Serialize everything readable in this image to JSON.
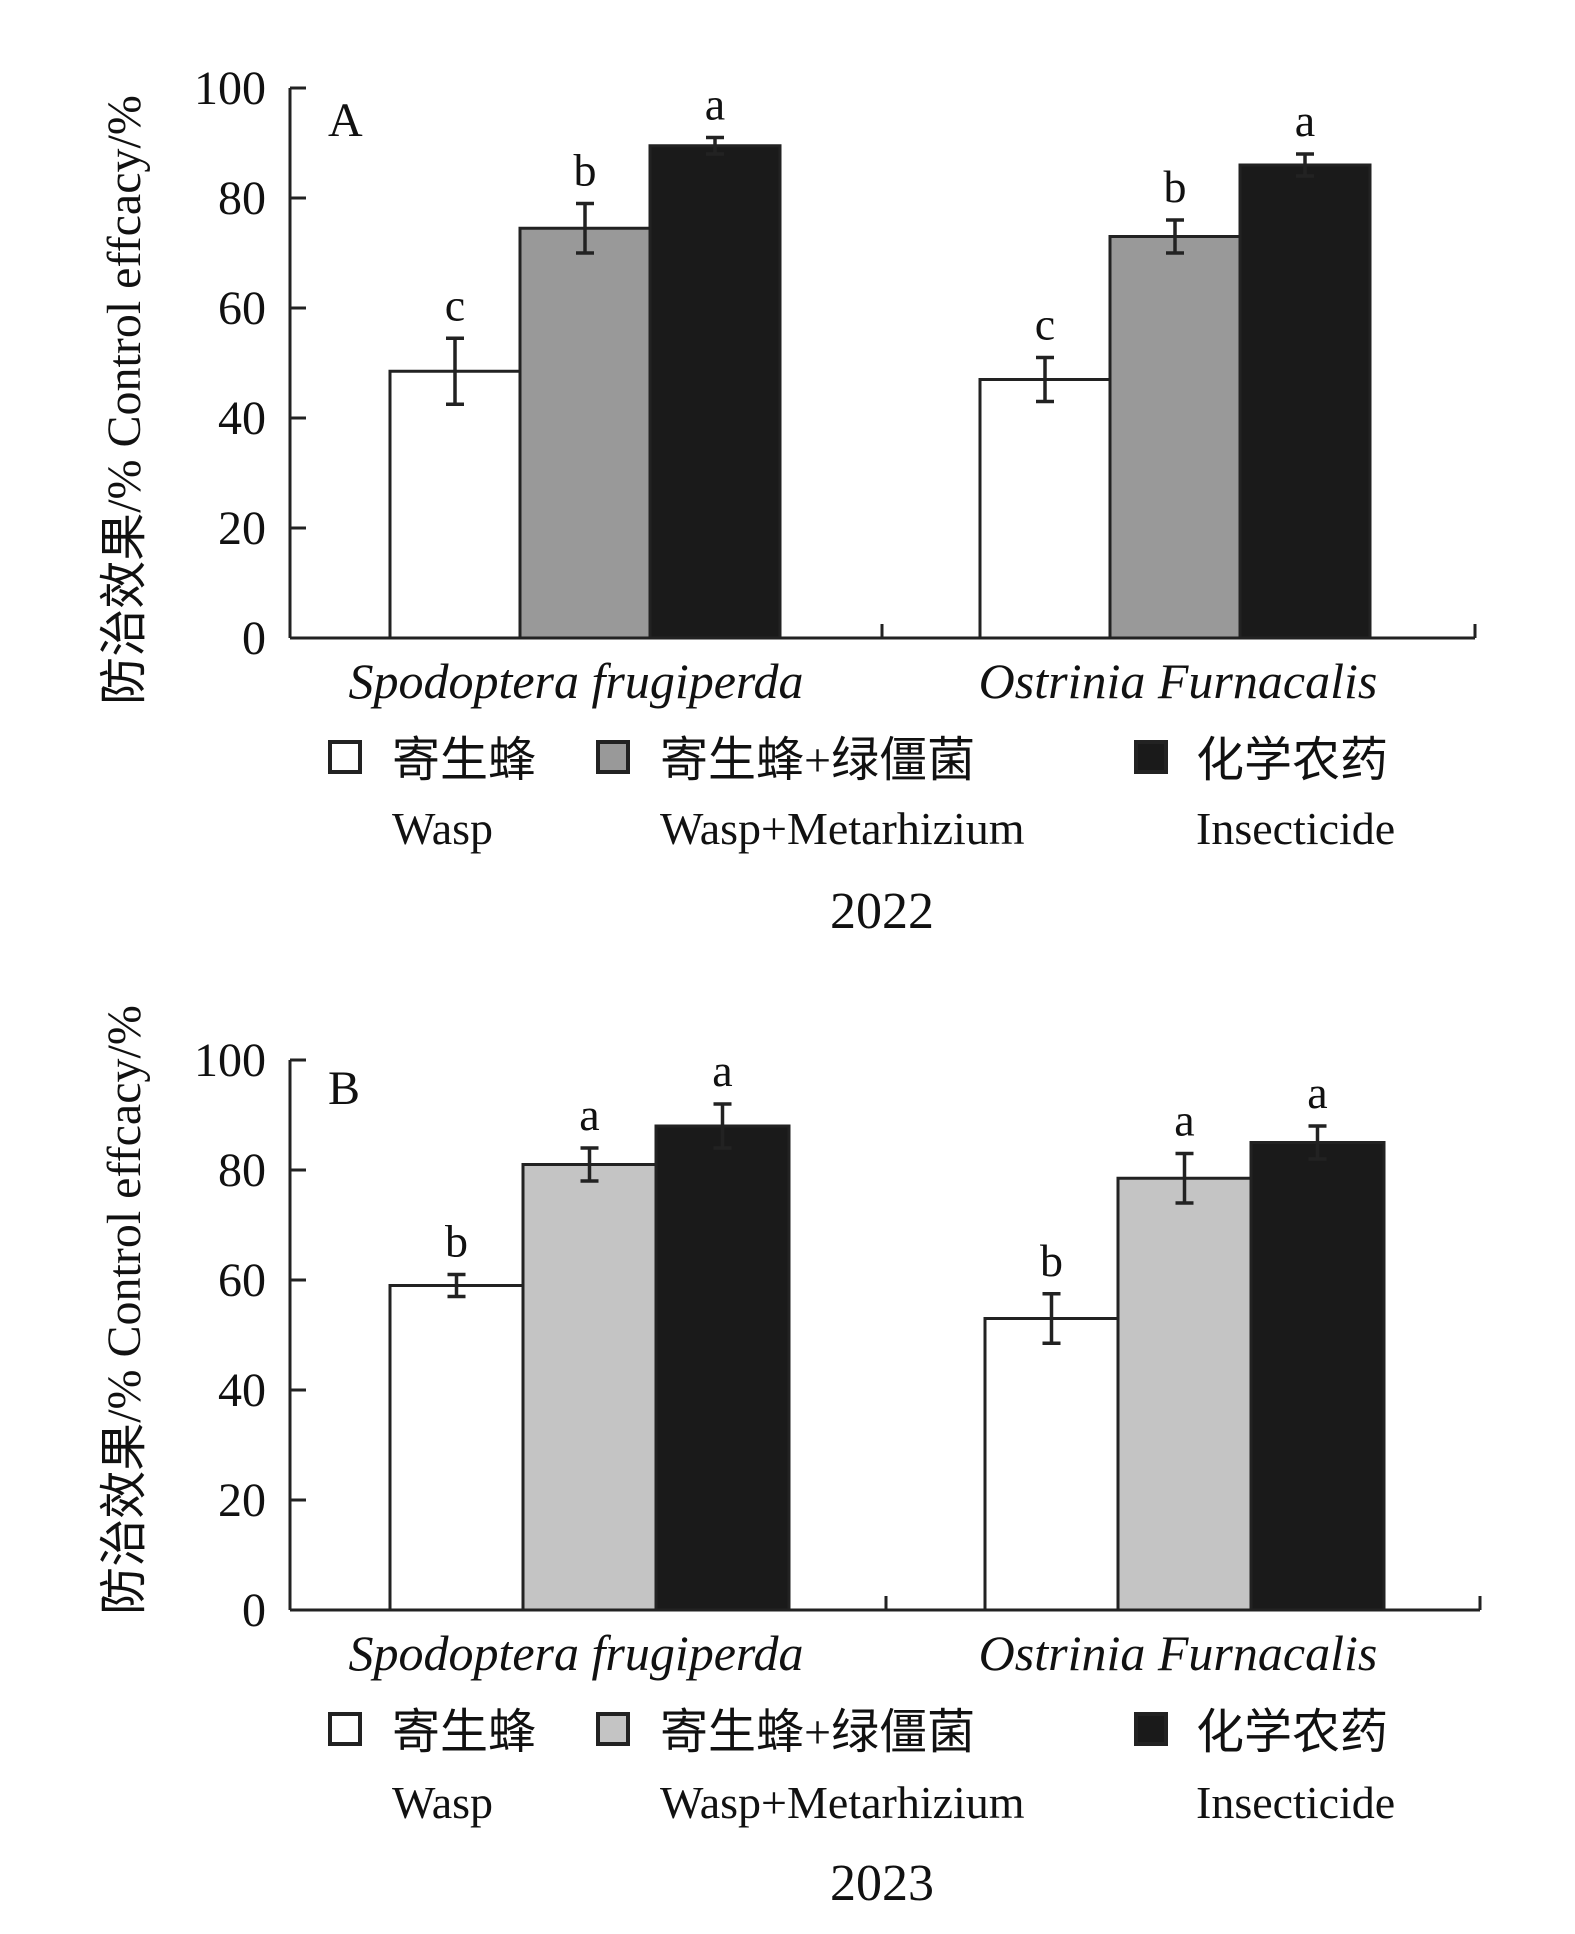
{
  "y_axis_label": "防治效果/% Control effcacy/%",
  "legend": [
    {
      "zh": "寄生蜂",
      "en": "Wasp"
    },
    {
      "zh": "寄生蜂+绿僵菌",
      "en": "Wasp+Metarhizium"
    },
    {
      "zh": "化学农药",
      "en": "Insecticide"
    }
  ],
  "colors": {
    "wasp": "#ffffff",
    "wasp_metarhizium_2022": "#999999",
    "wasp_metarhizium_2023": "#c4c4c4",
    "insecticide": "#1a1a1a",
    "axis": "#222222"
  },
  "chart_data": [
    {
      "type": "bar",
      "panel": "A",
      "year": "2022",
      "categories": [
        "Spodoptera frugiperda",
        "Ostrinia Furnacalis"
      ],
      "ylim": [
        0,
        100
      ],
      "yticks": [
        0,
        20,
        40,
        60,
        80,
        100
      ],
      "series": [
        {
          "values": [
            48.5,
            47.0
          ],
          "errors": [
            6.0,
            4.0
          ],
          "letters": [
            "c",
            "c"
          ]
        },
        {
          "values": [
            74.5,
            73.0
          ],
          "errors": [
            4.5,
            3.0
          ],
          "letters": [
            "b",
            "b"
          ]
        },
        {
          "values": [
            89.5,
            86.0
          ],
          "errors": [
            1.5,
            2.0
          ],
          "letters": [
            "a",
            "a"
          ]
        }
      ]
    },
    {
      "type": "bar",
      "panel": "B",
      "year": "2023",
      "categories": [
        "Spodoptera frugiperda",
        "Ostrinia Furnacalis"
      ],
      "ylim": [
        0,
        100
      ],
      "yticks": [
        0,
        20,
        40,
        60,
        80,
        100
      ],
      "series": [
        {
          "values": [
            59.0,
            53.0
          ],
          "errors": [
            2.0,
            4.5
          ],
          "letters": [
            "b",
            "b"
          ]
        },
        {
          "values": [
            81.0,
            78.5
          ],
          "errors": [
            3.0,
            4.5
          ],
          "letters": [
            "a",
            "a"
          ]
        },
        {
          "values": [
            88.0,
            85.0
          ],
          "errors": [
            4.0,
            3.0
          ],
          "letters": [
            "a",
            "a"
          ]
        }
      ]
    }
  ]
}
